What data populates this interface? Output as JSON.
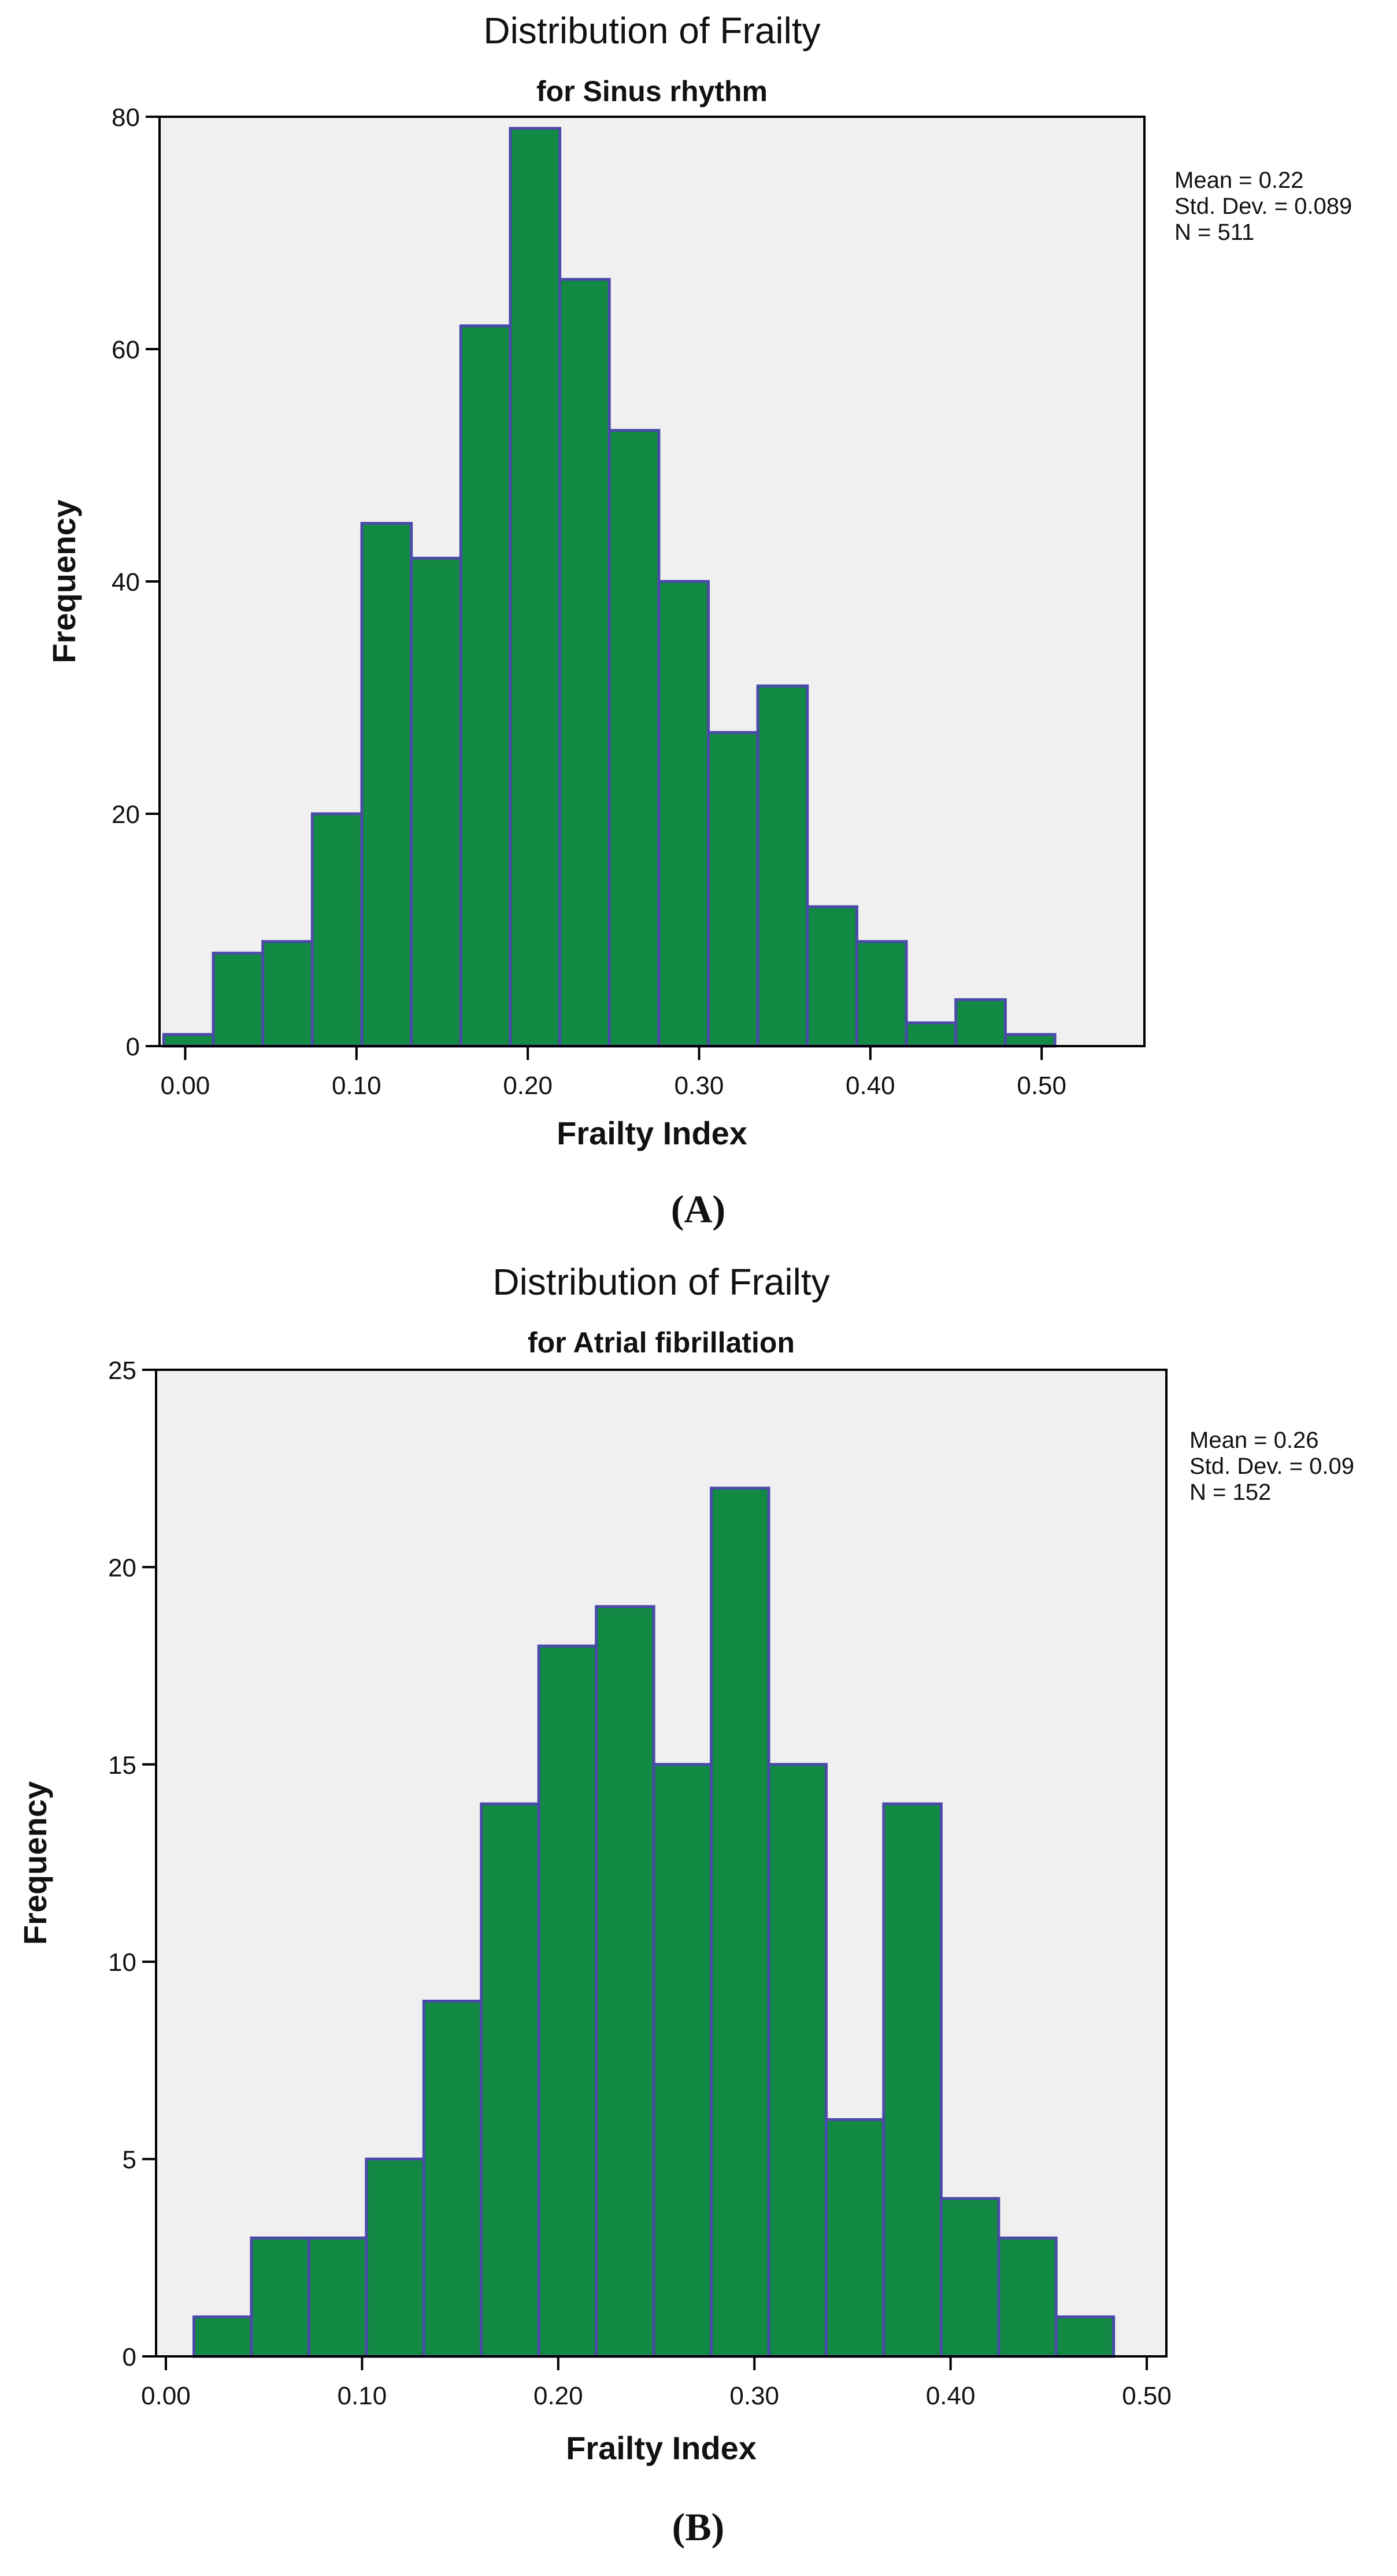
{
  "chart_data": [
    {
      "type": "bar",
      "panel_label": "(A)",
      "title": "Distribution of Frailty",
      "subtitle": "for Sinus rhythm",
      "xlabel": "Frailty Index",
      "ylabel": "Frequency",
      "xlim": [
        -0.015,
        0.56
      ],
      "ylim": [
        0,
        80
      ],
      "xticks": [
        0.0,
        0.1,
        0.2,
        0.3,
        0.4,
        0.5
      ],
      "xtick_labels": [
        "0.00",
        "0.10",
        "0.20",
        "0.30",
        "0.40",
        "0.50"
      ],
      "yticks": [
        0,
        20,
        40,
        60,
        80
      ],
      "ytick_labels": [
        "0",
        "20",
        "40",
        "60",
        "80"
      ],
      "bin_start": -0.0125,
      "bin_width": 0.0289,
      "values": [
        1,
        8,
        9,
        20,
        45,
        42,
        62,
        79,
        66,
        53,
        40,
        27,
        31,
        12,
        9,
        2,
        4,
        1
      ],
      "stats": [
        "Mean = 0.22",
        "Std. Dev. = 0.089",
        "N = 511"
      ],
      "bar_color": "#138a43",
      "edge_color": "#4a4aa8",
      "plot_bg": "#f0f0f0",
      "grid": false
    },
    {
      "type": "bar",
      "panel_label": "(B)",
      "title": "Distribution of Frailty",
      "subtitle": "for Atrial fibrillation",
      "xlabel": "Frailty Index",
      "ylabel": "Frequency",
      "xlim": [
        -0.005,
        0.51
      ],
      "ylim": [
        0,
        25
      ],
      "xticks": [
        0.0,
        0.1,
        0.2,
        0.3,
        0.4,
        0.5
      ],
      "xtick_labels": [
        "0.00",
        "0.10",
        "0.20",
        "0.30",
        "0.40",
        "0.50"
      ],
      "yticks": [
        0,
        5,
        10,
        15,
        20,
        25
      ],
      "ytick_labels": [
        "0",
        "5",
        "10",
        "15",
        "20",
        "25"
      ],
      "bin_start": 0.0143,
      "bin_width": 0.0293,
      "values": [
        1,
        3,
        3,
        5,
        9,
        14,
        18,
        19,
        15,
        22,
        15,
        6,
        14,
        4,
        3,
        1
      ],
      "stats": [
        "Mean = 0.26",
        "Std. Dev. = 0.09",
        "N = 152"
      ],
      "bar_color": "#138a43",
      "edge_color": "#4a4aa8",
      "plot_bg": "#f0f0f0",
      "grid": false
    }
  ]
}
